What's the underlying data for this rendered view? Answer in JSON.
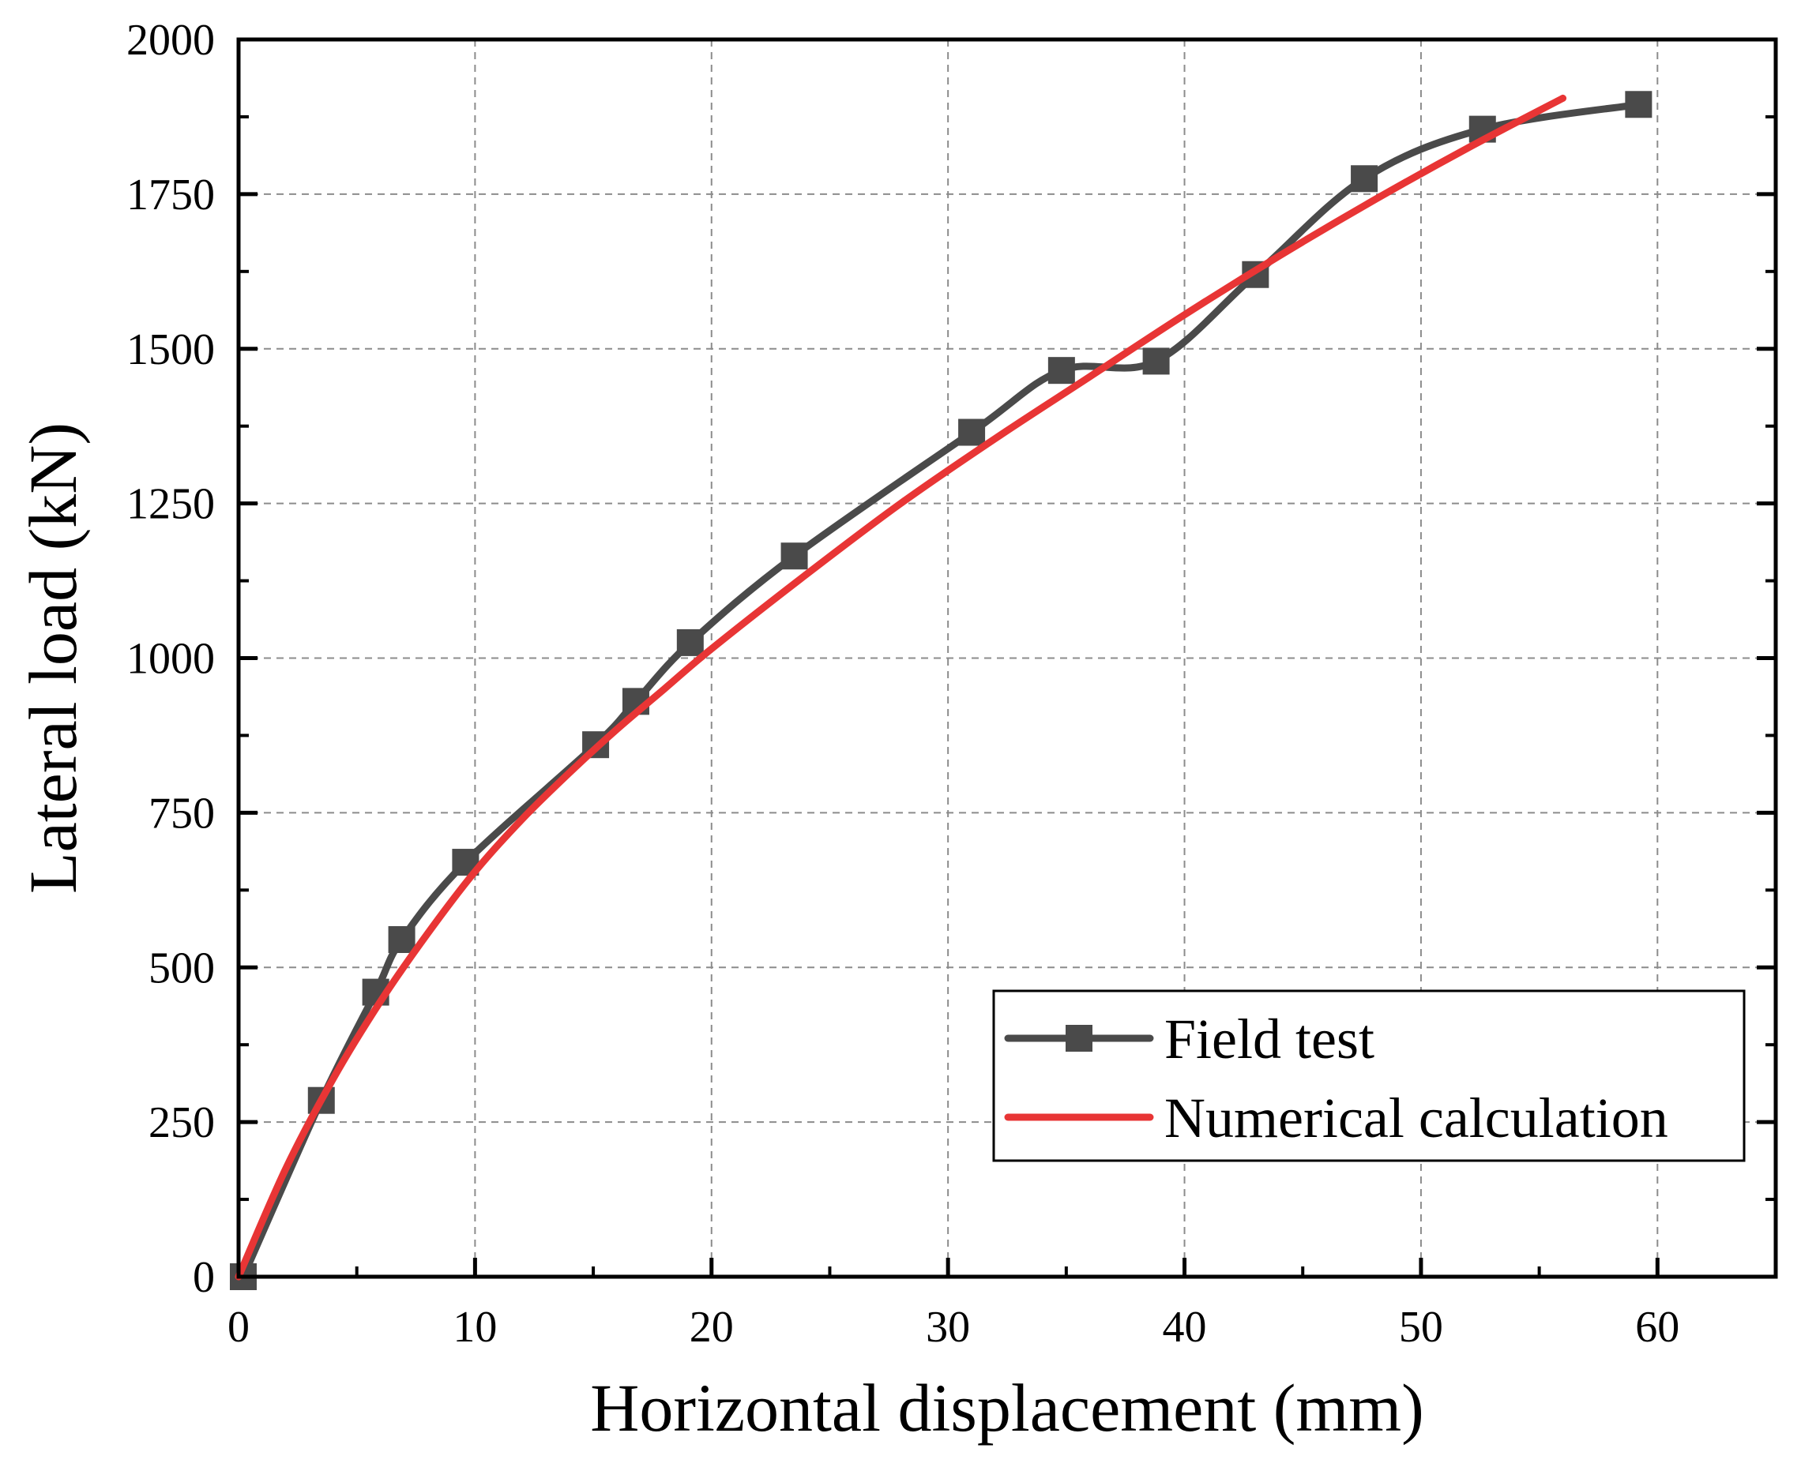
{
  "chart_data": {
    "type": "line",
    "title": "",
    "xlabel": "Horizontal displacement (mm)",
    "ylabel": "Lateral load (kN)",
    "xlim": [
      0,
      65
    ],
    "ylim": [
      0,
      2000
    ],
    "xticks": [
      0,
      10,
      20,
      30,
      40,
      50,
      60
    ],
    "yticks": [
      0,
      250,
      500,
      750,
      1000,
      1250,
      1500,
      1750,
      2000
    ],
    "xtick_labels": [
      "0",
      "10",
      "20",
      "30",
      "40",
      "50",
      "60"
    ],
    "ytick_labels": [
      "0",
      "250",
      "500",
      "750",
      "1000",
      "1250",
      "1500",
      "1750",
      "2000"
    ],
    "grid": true,
    "legend_position": "bottom-right",
    "series": [
      {
        "name": "Field test",
        "color": "#4a4a4a",
        "marker": "square",
        "smooth": true,
        "x": [
          0.2,
          3.5,
          5.8,
          6.9,
          9.6,
          15.1,
          16.8,
          19.1,
          23.5,
          31.0,
          34.8,
          38.8,
          43.0,
          47.6,
          52.6,
          59.2
        ],
        "y": [
          0,
          285,
          460,
          545,
          670,
          860,
          930,
          1025,
          1165,
          1365,
          1465,
          1480,
          1620,
          1775,
          1855,
          1895
        ]
      },
      {
        "name": "Numerical calculation",
        "color": "#e83535",
        "marker": "none",
        "smooth": true,
        "x": [
          0,
          2,
          4,
          6,
          8,
          10,
          12,
          14,
          16,
          18,
          20,
          24,
          28,
          32,
          36,
          40,
          44,
          48,
          52,
          56
        ],
        "y": [
          0,
          175,
          320,
          445,
          555,
          655,
          740,
          815,
          885,
          950,
          1015,
          1135,
          1250,
          1355,
          1455,
          1555,
          1650,
          1740,
          1825,
          1905
        ]
      }
    ]
  }
}
